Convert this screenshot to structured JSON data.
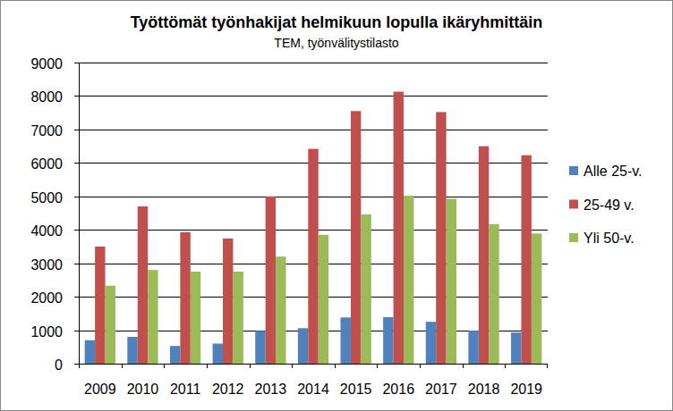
{
  "chart_data": {
    "type": "bar",
    "title": "Työttömät työnhakijat helmikuun lopulla ikäryhmittäin",
    "subtitle": "TEM, työnvälitystilasto",
    "categories": [
      "2009",
      "2010",
      "2011",
      "2012",
      "2013",
      "2014",
      "2015",
      "2016",
      "2017",
      "2018",
      "2019"
    ],
    "series": [
      {
        "name": "Alle 25-v.",
        "color": "#4f81bd",
        "values": [
          700,
          800,
          530,
          600,
          980,
          1060,
          1380,
          1390,
          1250,
          990,
          930
        ]
      },
      {
        "name": "25-49 v.",
        "color": "#c0504d",
        "values": [
          3500,
          4700,
          3930,
          3740,
          5000,
          6420,
          7550,
          8130,
          7520,
          6500,
          6230
        ]
      },
      {
        "name": "Yli 50-v.",
        "color": "#9bbb59",
        "values": [
          2330,
          2800,
          2750,
          2750,
          3200,
          3850,
          4460,
          5020,
          4930,
          4170,
          3890
        ]
      }
    ],
    "ylim": [
      0,
      9000
    ],
    "yticks": [
      0,
      1000,
      2000,
      3000,
      4000,
      5000,
      6000,
      7000,
      8000,
      9000
    ],
    "grid": true,
    "legend": "right"
  }
}
